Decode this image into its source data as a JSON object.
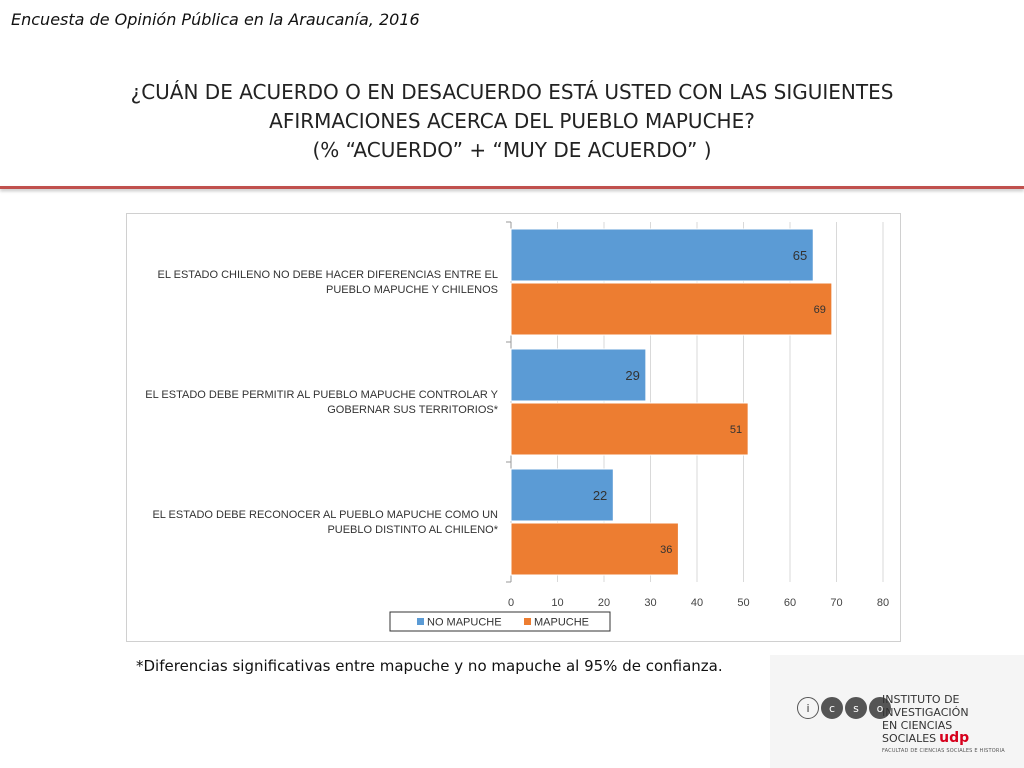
{
  "header": {
    "title": "Encuesta de Opinión Pública en la Araucanía, 2016"
  },
  "question": {
    "line1": "¿CUÁN DE ACUERDO O EN DESACUERDO ESTÁ USTED CON LAS SIGUIENTES",
    "line2": "AFIRMACIONES ACERCA DEL PUEBLO MAPUCHE?",
    "line3": "(% “ACUERDO” + “MUY DE ACUERDO” )"
  },
  "colors": {
    "accent_line": "#c0504d",
    "no_mapuche": "#5b9bd5",
    "mapuche": "#ed7d31"
  },
  "chart_data": {
    "type": "bar",
    "orientation": "horizontal",
    "categories": [
      [
        "EL ESTADO CHILENO NO DEBE HACER DIFERENCIAS ENTRE EL",
        "PUEBLO MAPUCHE Y CHILENOS"
      ],
      [
        "EL ESTADO DEBE PERMITIR AL PUEBLO MAPUCHE CONTROLAR Y",
        "GOBERNAR  SUS TERRITORIOS*"
      ],
      [
        "EL ESTADO DEBE RECONOCER AL PUEBLO MAPUCHE COMO UN",
        "PUEBLO DISTINTO AL CHILENO*"
      ]
    ],
    "series": [
      {
        "name": "NO MAPUCHE",
        "values": [
          65,
          29,
          22
        ],
        "color": "#5b9bd5"
      },
      {
        "name": "MAPUCHE",
        "values": [
          69,
          51,
          36
        ],
        "color": "#ed7d31"
      }
    ],
    "xlim": [
      0,
      80
    ],
    "xticks": [
      0,
      10,
      20,
      30,
      40,
      50,
      60,
      70,
      80
    ],
    "grid": true,
    "legend": "bottom"
  },
  "footnote": "*Diferencias significativas entre mapuche y no mapuche al 95% de confianza.",
  "logo": {
    "circles": [
      "i",
      "c",
      "s",
      "o"
    ],
    "line1": "INSTITUTO DE INVESTIGACIÓN",
    "line2": "EN CIENCIAS SOCIALES",
    "brand": "udp",
    "subtitle": "FACULTAD DE CIENCIAS SOCIALES E HISTORIA"
  }
}
